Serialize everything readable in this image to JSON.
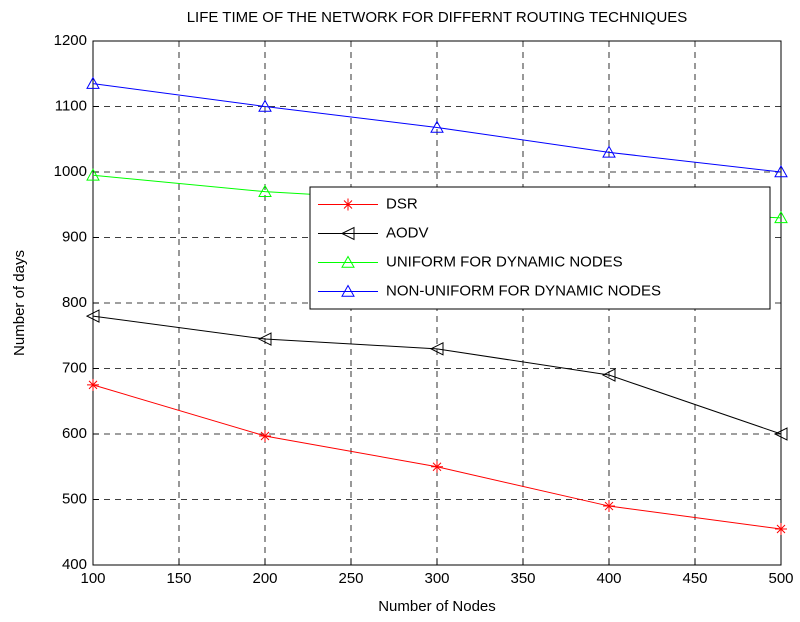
{
  "chart_data": {
    "type": "line",
    "title": "LIFE TIME OF THE NETWORK FOR DIFFERNT ROUTING TECHNIQUES",
    "x_label": "Number of Nodes",
    "y_label": "Number of days",
    "x": [
      100,
      200,
      300,
      400,
      500
    ],
    "series": [
      {
        "name": "DSR",
        "color": "#ff0000",
        "marker": "asterisk",
        "values": [
          675,
          597,
          550,
          490,
          455
        ]
      },
      {
        "name": "AODV",
        "color": "#000000",
        "marker": "triangle-left",
        "values": [
          780,
          745,
          730,
          690,
          600
        ]
      },
      {
        "name": "UNIFORM FOR DYNAMIC NODES",
        "color": "#00ff00",
        "marker": "triangle-up",
        "values": [
          995,
          970,
          955,
          942,
          930
        ]
      },
      {
        "name": "NON-UNIFORM FOR DYNAMIC NODES",
        "color": "#0000ff",
        "marker": "triangle-up",
        "values": [
          1135,
          1100,
          1068,
          1030,
          1000
        ]
      }
    ],
    "xlim": [
      100,
      500
    ],
    "xticks": [
      100,
      150,
      200,
      250,
      300,
      350,
      400,
      450,
      500
    ],
    "ylim": [
      400,
      1200
    ],
    "yticks": [
      400,
      500,
      600,
      700,
      800,
      900,
      1000,
      1100,
      1200
    ],
    "grid": true,
    "legend_position": "center right"
  }
}
